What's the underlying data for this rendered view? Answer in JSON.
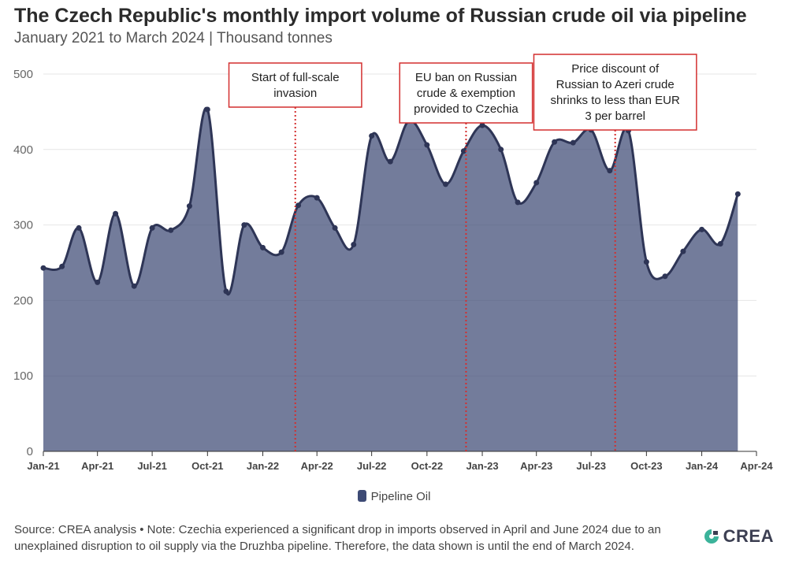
{
  "title": "The Czech Republic's monthly import volume of Russian crude oil via pipeline",
  "subtitle": "January 2021 to March 2024 | Thousand tonnes",
  "colors": {
    "series": "#3d4a75",
    "annotation": "#d32f2f",
    "grid": "#e6e6e6"
  },
  "chart_data": {
    "type": "area",
    "x": [
      "2021-01",
      "2021-02",
      "2021-03",
      "2021-04",
      "2021-05",
      "2021-06",
      "2021-07",
      "2021-08",
      "2021-09",
      "2021-10",
      "2021-11",
      "2021-12",
      "2022-01",
      "2022-02",
      "2022-03",
      "2022-04",
      "2022-05",
      "2022-06",
      "2022-07",
      "2022-08",
      "2022-09",
      "2022-10",
      "2022-11",
      "2022-12",
      "2023-01",
      "2023-02",
      "2023-03",
      "2023-04",
      "2023-05",
      "2023-06",
      "2023-07",
      "2023-08",
      "2023-09",
      "2023-10",
      "2023-11",
      "2023-12",
      "2024-01",
      "2024-02",
      "2024-03"
    ],
    "series": [
      {
        "name": "Pipeline Oil",
        "values": [
          243,
          245,
          296,
          224,
          315,
          219,
          296,
          293,
          325,
          453,
          212,
          300,
          270,
          264,
          326,
          336,
          296,
          274,
          418,
          384,
          438,
          406,
          354,
          398,
          432,
          400,
          330,
          356,
          410,
          409,
          426,
          372,
          425,
          251,
          232,
          265,
          294,
          275,
          341
        ]
      }
    ],
    "xlabel": "",
    "ylabel": "",
    "ylim": [
      0,
      500
    ],
    "yticks": [
      0,
      100,
      200,
      300,
      400,
      500
    ],
    "xticks": [
      {
        "label": "Jan-21",
        "date": "2021-01"
      },
      {
        "label": "Apr-21",
        "date": "2021-04"
      },
      {
        "label": "Jul-21",
        "date": "2021-07"
      },
      {
        "label": "Oct-21",
        "date": "2021-10"
      },
      {
        "label": "Jan-22",
        "date": "2022-01"
      },
      {
        "label": "Apr-22",
        "date": "2022-04"
      },
      {
        "label": "Jul-22",
        "date": "2022-07"
      },
      {
        "label": "Oct-22",
        "date": "2022-10"
      },
      {
        "label": "Jan-23",
        "date": "2023-01"
      },
      {
        "label": "Apr-23",
        "date": "2023-04"
      },
      {
        "label": "Jul-23",
        "date": "2023-07"
      },
      {
        "label": "Oct-23",
        "date": "2023-10"
      },
      {
        "label": "Jan-24",
        "date": "2024-01"
      },
      {
        "label": "Apr-24",
        "date": "2024-04"
      }
    ],
    "annotations": [
      {
        "date": "2022-02-24",
        "lines": [
          "Start of full-scale",
          "invasion"
        ]
      },
      {
        "date": "2022-12-05",
        "lines": [
          "EU ban on Russian",
          "crude & exemption",
          "provided to Czechia"
        ]
      },
      {
        "date": "2023-08-10",
        "lines": [
          "Price discount of",
          "Russian to Azeri crude",
          "shrinks to less than EUR",
          "3 per barrel"
        ]
      }
    ],
    "grid": true,
    "legend": {
      "position": "bottom",
      "label": "Pipeline Oil"
    }
  },
  "source_line1": "Source: CREA analysis • Note: Czechia experienced a significant drop in imports observed in April and June 2024 due to an",
  "source_line2": "unexplained disruption to oil supply via the Druzhba pipeline. Therefore, the data shown is until the end of March 2024.",
  "logo_text": "CREA",
  "logo_icon": "crea-logo-icon"
}
